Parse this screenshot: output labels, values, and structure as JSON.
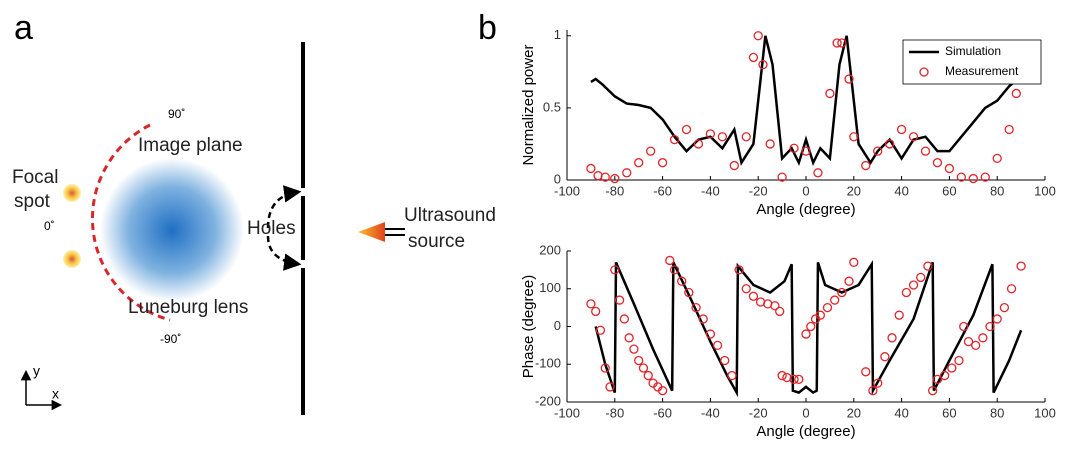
{
  "panel_labels": [
    "a",
    "b"
  ],
  "diagram": {
    "focal_spot": [
      "Focal",
      "spot"
    ],
    "angle_labels": [
      "90˚",
      "0˚",
      "-90˚"
    ],
    "image_plane": "Image plane",
    "holes": "Holes",
    "lens": "Luneburg lens",
    "source": [
      "Ultrasound",
      "source"
    ],
    "axes": [
      "y",
      "x"
    ]
  },
  "chart_data": [
    {
      "type": "line",
      "xlabel": "Angle (degree)",
      "ylabel": "Normalized power",
      "xlim": [
        -100,
        100
      ],
      "xticks": [
        -100,
        -80,
        -60,
        -40,
        -20,
        0,
        20,
        40,
        60,
        80,
        100
      ],
      "ylim": [
        0,
        1.04
      ],
      "yticks": [
        0,
        0.5,
        1
      ],
      "legend": "upper right",
      "series": [
        {
          "name": "Simulation",
          "color": "#000000",
          "style": "line",
          "x": [
            -90,
            -88,
            -85,
            -80,
            -75,
            -70,
            -65,
            -60,
            -55,
            -50,
            -45,
            -40,
            -35,
            -30,
            -27,
            -22,
            -17,
            -14,
            -10,
            -6,
            -3,
            0,
            3,
            6,
            10,
            14,
            17,
            22,
            27,
            30,
            35,
            40,
            45,
            50,
            55,
            60,
            65,
            70,
            75,
            80,
            85,
            90
          ],
          "values": [
            0.68,
            0.7,
            0.66,
            0.58,
            0.53,
            0.52,
            0.5,
            0.42,
            0.3,
            0.2,
            0.28,
            0.3,
            0.22,
            0.35,
            0.12,
            0.25,
            1.0,
            0.8,
            0.15,
            0.22,
            0.12,
            0.28,
            0.12,
            0.22,
            0.15,
            0.8,
            1.0,
            0.25,
            0.12,
            0.2,
            0.28,
            0.15,
            0.28,
            0.3,
            0.2,
            0.2,
            0.3,
            0.4,
            0.5,
            0.55,
            0.65,
            0.72
          ]
        },
        {
          "name": "Measurement",
          "color": "#e0242a",
          "style": "markers",
          "x": [
            -90,
            -87,
            -84,
            -80,
            -75,
            -70,
            -65,
            -60,
            -55,
            -50,
            -45,
            -40,
            -35,
            -30,
            -25,
            -22,
            -20,
            -18,
            -15,
            -10,
            -5,
            0,
            5,
            10,
            13,
            15,
            18,
            20,
            25,
            30,
            35,
            40,
            45,
            50,
            55,
            60,
            65,
            70,
            75,
            80,
            85,
            88
          ],
          "values": [
            0.08,
            0.03,
            0.02,
            0.01,
            0.05,
            0.12,
            0.2,
            0.12,
            0.28,
            0.35,
            0.25,
            0.32,
            0.3,
            0.1,
            0.3,
            0.85,
            1.0,
            0.8,
            0.25,
            0.02,
            0.22,
            0.2,
            0.05,
            0.6,
            0.95,
            0.95,
            0.7,
            0.3,
            0.1,
            0.2,
            0.25,
            0.35,
            0.3,
            0.2,
            0.12,
            0.08,
            0.02,
            0.01,
            0.02,
            0.15,
            0.35,
            0.6
          ]
        }
      ]
    },
    {
      "type": "line",
      "xlabel": "Angle (degree)",
      "ylabel": "Phase (degree)",
      "xlim": [
        -100,
        100
      ],
      "xticks": [
        -100,
        -80,
        -60,
        -40,
        -20,
        0,
        20,
        40,
        60,
        80,
        100
      ],
      "ylim": [
        -200,
        200
      ],
      "yticks": [
        -200,
        -100,
        0,
        100,
        200
      ],
      "series": [
        {
          "name": "Simulation",
          "color": "#000000",
          "style": "line",
          "x": [
            -88,
            -84,
            -80,
            -79.5,
            -72,
            -64,
            -56,
            -55.5,
            -48,
            -40,
            -33,
            -29,
            -28.5,
            -22,
            -15,
            -9,
            -6,
            -5.5,
            -3,
            0,
            3,
            4.5,
            5,
            8,
            15,
            22,
            27.5,
            28,
            35,
            45,
            53,
            53.5,
            60,
            70,
            78,
            78.5,
            85,
            90
          ],
          "values": [
            0,
            -100,
            -175,
            170,
            60,
            -60,
            -170,
            170,
            70,
            -40,
            -130,
            -175,
            160,
            110,
            90,
            120,
            165,
            -170,
            -175,
            -160,
            -175,
            -170,
            170,
            110,
            90,
            110,
            165,
            -170,
            -90,
            20,
            170,
            -170,
            -90,
            30,
            165,
            -175,
            -90,
            -10
          ]
        },
        {
          "name": "Measurement",
          "color": "#e0242a",
          "style": "markers",
          "x": [
            -90,
            -88,
            -86,
            -84,
            -82,
            -80,
            -78,
            -76,
            -74,
            -72,
            -70,
            -68,
            -66,
            -64,
            -62,
            -60,
            -57,
            -55,
            -52,
            -49,
            -46,
            -43,
            -40,
            -37,
            -34,
            -31,
            -28,
            -25,
            -22,
            -19,
            -16,
            -13,
            -11,
            -10,
            -8,
            -5,
            -3,
            0,
            2,
            4,
            6,
            9,
            12,
            15,
            18,
            20,
            25,
            28,
            30,
            33,
            36,
            39,
            42,
            45,
            48,
            51,
            53,
            55,
            58,
            61,
            64,
            66,
            68,
            71,
            74,
            77,
            80,
            83,
            86,
            90
          ],
          "values": [
            60,
            40,
            -10,
            -110,
            -160,
            150,
            70,
            20,
            -30,
            -60,
            -90,
            -110,
            -130,
            -150,
            -160,
            -170,
            175,
            150,
            120,
            90,
            50,
            20,
            -20,
            -50,
            -90,
            -130,
            150,
            100,
            80,
            65,
            60,
            55,
            40,
            -130,
            -135,
            -140,
            -140,
            -20,
            0,
            20,
            30,
            50,
            70,
            90,
            120,
            170,
            -120,
            -170,
            -150,
            -80,
            -30,
            30,
            90,
            110,
            130,
            160,
            -170,
            -140,
            -130,
            -110,
            -90,
            0,
            -40,
            -50,
            -30,
            0,
            20,
            50,
            100,
            160
          ]
        }
      ]
    }
  ]
}
